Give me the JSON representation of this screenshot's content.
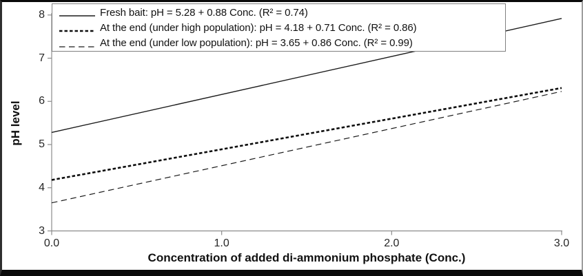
{
  "chart_data": {
    "type": "line",
    "title": "",
    "xlabel": "Concentration of added di-ammonium phosphate (Conc.)",
    "ylabel": "pH level",
    "xlim": [
      0.0,
      3.0
    ],
    "ylim": [
      3,
      8
    ],
    "x_ticks": [
      "0.0",
      "1.0",
      "2.0",
      "3.0"
    ],
    "y_ticks": [
      "3",
      "4",
      "5",
      "6",
      "7",
      "8"
    ],
    "grid": false,
    "legend_position": "top-left-inside",
    "axis_color": "#8c8c8c",
    "tick_label_color": "#262626",
    "series": [
      {
        "name": "Fresh bait",
        "legend_label": "Fresh bait: pH = 5.28 + 0.88 Conc. (R² = 0.74)",
        "equation": "pH = 5.28 + 0.88 Conc.",
        "intercept": 5.28,
        "slope": 0.88,
        "r_squared": 0.74,
        "line_style": "solid",
        "line_width": 1.4,
        "dash": "",
        "color": "#1a1a1a",
        "x": [
          0.0,
          3.0
        ],
        "y": [
          5.28,
          7.92
        ]
      },
      {
        "name": "At the end (under high population)",
        "legend_label": "At the end (under high population): pH = 4.18 + 0.71 Conc. (R² = 0.86)",
        "equation": "pH = 4.18 + 0.71 Conc.",
        "intercept": 4.18,
        "slope": 0.71,
        "r_squared": 0.86,
        "line_style": "dashed-bold",
        "line_width": 2.6,
        "dash": "4.5 3",
        "color": "#0d0d0d",
        "x": [
          0.0,
          3.0
        ],
        "y": [
          4.18,
          6.31
        ]
      },
      {
        "name": "At the end (under low population)",
        "legend_label": "At the end (under low population): pH = 3.65 + 0.86 Conc. (R² = 0.99)",
        "equation": "pH = 3.65 + 0.86 Conc.",
        "intercept": 3.65,
        "slope": 0.86,
        "r_squared": 0.99,
        "line_style": "dashed",
        "line_width": 1.2,
        "dash": "8.5 5.5",
        "color": "#1a1a1a",
        "x": [
          0.0,
          3.0
        ],
        "y": [
          3.65,
          6.23
        ]
      }
    ]
  }
}
